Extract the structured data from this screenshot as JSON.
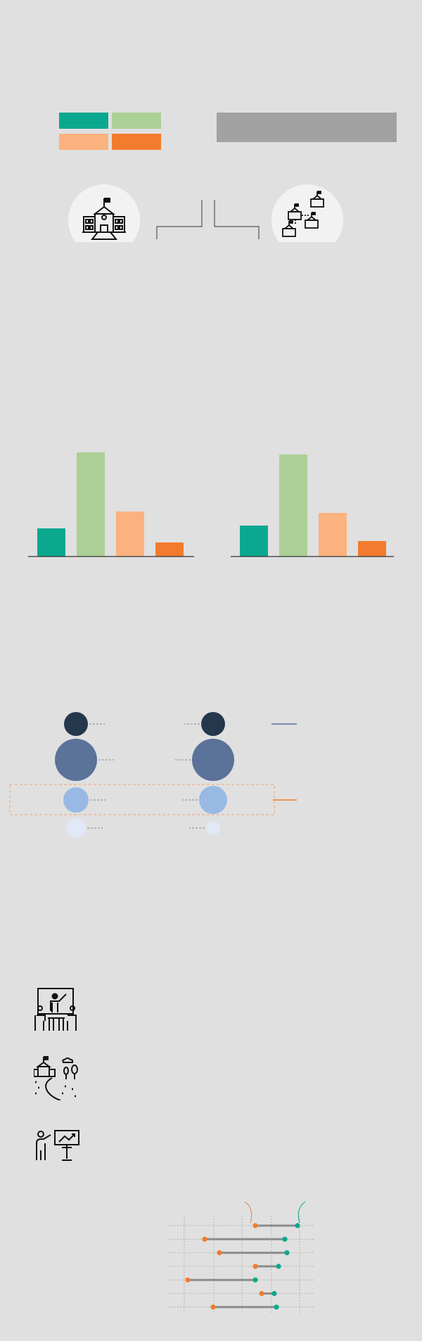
{
  "colors": {
    "background": "#e0e0e0",
    "teal": "#0aa88f",
    "light_green": "#acd095",
    "peach": "#fbb27e",
    "orange": "#f27b2d",
    "gray_bar": "#a2a2a2",
    "circle_bg": "#f2f2f2",
    "bubble_1": "#25374d",
    "bubble_2": "#5b7299",
    "bubble_3": "#97b9e4",
    "bubble_4": "#e1e9f7",
    "dumbbell_line": "#8c8c8c"
  },
  "legend_swatches": [
    "#0aa88f",
    "#acd095",
    "#fbb27e",
    "#f27b2d"
  ],
  "icons": [
    "school-building-icon",
    "school-network-icon",
    "teacher-classroom-icon",
    "campus-landscape-icon",
    "presentation-teacher-icon"
  ],
  "chart_data": [
    {
      "type": "bar",
      "categories": [
        "",
        "",
        "",
        ""
      ],
      "values": [
        40,
        148,
        64,
        20
      ],
      "colors": [
        "#0aa88f",
        "#acd095",
        "#fbb27e",
        "#f27b2d"
      ],
      "ylim": [
        0,
        150
      ],
      "grid": false
    },
    {
      "type": "bar",
      "categories": [
        "",
        "",
        "",
        ""
      ],
      "values": [
        44,
        145,
        62,
        22
      ],
      "colors": [
        "#0aa88f",
        "#acd095",
        "#fbb27e",
        "#f27b2d"
      ],
      "ylim": [
        0,
        150
      ],
      "grid": false
    },
    {
      "type": "scatter",
      "description_free": true,
      "series": [
        {
          "sizes": [
            17,
            30,
            18,
            14
          ]
        },
        {
          "sizes": [
            17,
            30,
            20,
            10
          ]
        }
      ]
    },
    {
      "type": "scatter",
      "rows": 7,
      "series": [
        {
          "values": [
            3.5,
            1.1,
            1.8,
            3.5,
            0.3,
            3.8,
            1.5
          ]
        },
        {
          "values": [
            5.5,
            4.9,
            5.0,
            4.6,
            3.5,
            4.4,
            4.5
          ]
        }
      ],
      "xlim": [
        0,
        6
      ],
      "grid": true
    }
  ]
}
